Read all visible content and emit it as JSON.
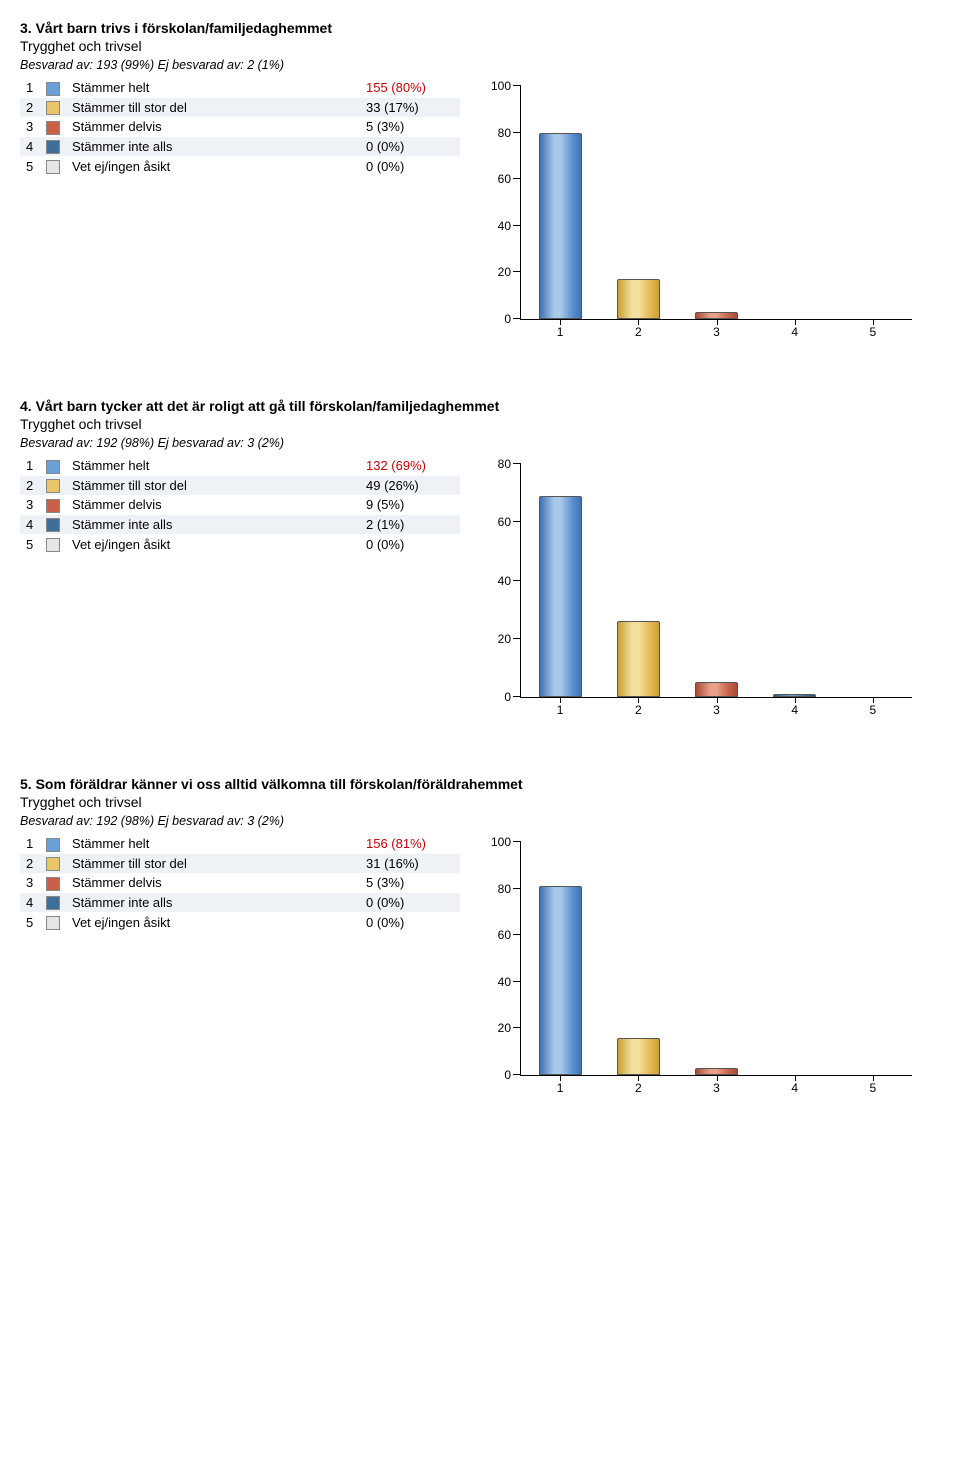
{
  "swatch_colors": [
    "#6b9fd8",
    "#e9c56a",
    "#c8604a",
    "#3f6e99",
    "#e6e6e6"
  ],
  "bar_gradients": [
    [
      "#a9c9ea",
      "#5a8fcf",
      "#3f73b3"
    ],
    [
      "#f4e0a0",
      "#e3b84f",
      "#caa038"
    ],
    [
      "#e8a088",
      "#c8604a",
      "#a84a36"
    ],
    [
      "#6d9cc6",
      "#3f6e99",
      "#2c567e"
    ],
    [
      "#f2f2f2",
      "#e0e0e0",
      "#cfcfcf"
    ]
  ],
  "sections": [
    {
      "title": "3. Vårt barn trivs i förskolan/familjedaghemmet",
      "subtitle": "Trygghet och trivsel",
      "response": "Besvarad av: 193 (99%) Ej besvarad av: 2 (1%)",
      "items": [
        {
          "n": 1,
          "label": "Stämmer helt",
          "value": "155 (80%)",
          "red": true
        },
        {
          "n": 2,
          "label": "Stämmer till stor del",
          "value": "33 (17%)",
          "red": false
        },
        {
          "n": 3,
          "label": "Stämmer delvis",
          "value": "5 (3%)",
          "red": false
        },
        {
          "n": 4,
          "label": "Stämmer inte alls",
          "value": "0 (0%)",
          "red": false
        },
        {
          "n": 5,
          "label": "Vet ej/ingen åsikt",
          "value": "0 (0%)",
          "red": false
        }
      ],
      "chart": {
        "ymax": 100,
        "ystep": 20,
        "bars": [
          80,
          17,
          3,
          0,
          0
        ]
      }
    },
    {
      "title": "4. Vårt barn tycker att det är roligt att gå till förskolan/familjedaghemmet",
      "subtitle": "Trygghet och trivsel",
      "response": "Besvarad av: 192 (98%) Ej besvarad av: 3 (2%)",
      "items": [
        {
          "n": 1,
          "label": "Stämmer helt",
          "value": "132 (69%)",
          "red": true
        },
        {
          "n": 2,
          "label": "Stämmer till stor del",
          "value": "49 (26%)",
          "red": false
        },
        {
          "n": 3,
          "label": "Stämmer delvis",
          "value": "9 (5%)",
          "red": false
        },
        {
          "n": 4,
          "label": "Stämmer inte alls",
          "value": "2 (1%)",
          "red": false
        },
        {
          "n": 5,
          "label": "Vet ej/ingen åsikt",
          "value": "0 (0%)",
          "red": false
        }
      ],
      "chart": {
        "ymax": 80,
        "ystep": 20,
        "bars": [
          69,
          26,
          5,
          1,
          0
        ]
      }
    },
    {
      "title": "5. Som föräldrar känner vi oss alltid välkomna till förskolan/föräldrahemmet",
      "subtitle": "Trygghet och trivsel",
      "response": "Besvarad av: 192 (98%) Ej besvarad av: 3 (2%)",
      "items": [
        {
          "n": 1,
          "label": "Stämmer helt",
          "value": "156 (81%)",
          "red": true
        },
        {
          "n": 2,
          "label": "Stämmer till stor del",
          "value": "31 (16%)",
          "red": false
        },
        {
          "n": 3,
          "label": "Stämmer delvis",
          "value": "5 (3%)",
          "red": false
        },
        {
          "n": 4,
          "label": "Stämmer inte alls",
          "value": "0 (0%)",
          "red": false
        },
        {
          "n": 5,
          "label": "Vet ej/ingen åsikt",
          "value": "0 (0%)",
          "red": false
        }
      ],
      "chart": {
        "ymax": 100,
        "ystep": 20,
        "bars": [
          81,
          16,
          3,
          0,
          0
        ]
      }
    }
  ]
}
